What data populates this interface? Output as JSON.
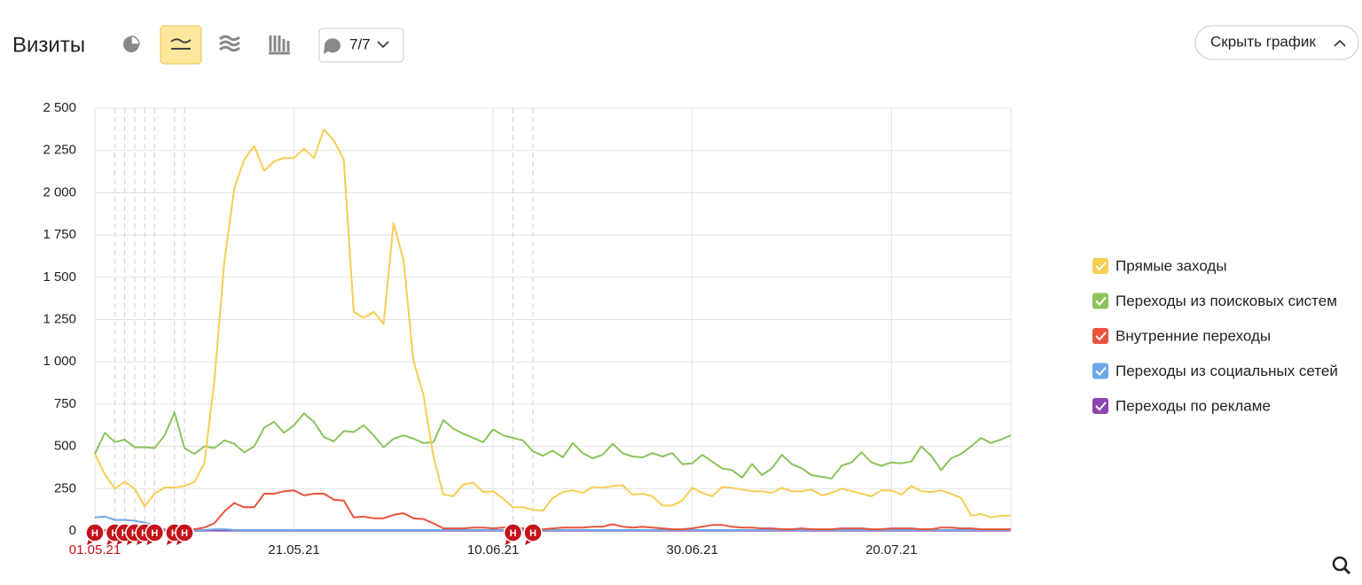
{
  "header": {
    "title": "Визиты",
    "filter": "7/7",
    "hide_button": "Скрыть график"
  },
  "chart_data": {
    "type": "line",
    "x": [
      "01.05.21",
      "02.05.21",
      "03.05.21",
      "04.05.21",
      "05.05.21",
      "06.05.21",
      "07.05.21",
      "08.05.21",
      "09.05.21",
      "10.05.21",
      "11.05.21",
      "12.05.21",
      "13.05.21",
      "14.05.21",
      "15.05.21",
      "16.05.21",
      "17.05.21",
      "18.05.21",
      "19.05.21",
      "20.05.21",
      "21.05.21",
      "22.05.21",
      "23.05.21",
      "24.05.21",
      "25.05.21",
      "26.05.21",
      "27.05.21",
      "28.05.21",
      "29.05.21",
      "30.05.21",
      "31.05.21",
      "01.06.21",
      "02.06.21",
      "03.06.21",
      "04.06.21",
      "05.06.21",
      "06.06.21",
      "07.06.21",
      "08.06.21",
      "09.06.21",
      "10.06.21",
      "11.06.21",
      "12.06.21",
      "13.06.21",
      "14.06.21",
      "15.06.21",
      "16.06.21",
      "17.06.21",
      "18.06.21",
      "19.06.21",
      "20.06.21",
      "21.06.21",
      "22.06.21",
      "23.06.21",
      "24.06.21",
      "25.06.21",
      "26.06.21",
      "27.06.21",
      "28.06.21",
      "29.06.21",
      "30.06.21",
      "01.07.21",
      "02.07.21",
      "03.07.21",
      "04.07.21",
      "05.07.21",
      "06.07.21",
      "07.07.21",
      "08.07.21",
      "09.07.21",
      "10.07.21",
      "11.07.21",
      "12.07.21",
      "13.07.21",
      "14.07.21",
      "15.07.21",
      "16.07.21",
      "17.07.21",
      "18.07.21",
      "19.07.21",
      "20.07.21",
      "21.07.21",
      "22.07.21",
      "23.07.21",
      "24.07.21",
      "25.07.21",
      "26.07.21",
      "27.07.21",
      "28.07.21",
      "29.07.21",
      "30.07.21",
      "31.07.21",
      "01.08.21"
    ],
    "xticks": [
      "01.05.21",
      "21.05.21",
      "10.06.21",
      "30.06.21",
      "20.07.21"
    ],
    "ylim": [
      0,
      2500
    ],
    "yticks": [
      0,
      250,
      500,
      750,
      {
        "value": 1000,
        "label": "1 000"
      },
      {
        "value": 1250,
        "label": "1 250"
      },
      {
        "value": 1500,
        "label": "1 500"
      },
      {
        "value": 1750,
        "label": "1 750"
      },
      {
        "value": 2000,
        "label": "2 000"
      },
      {
        "value": 2250,
        "label": "2 250"
      },
      {
        "value": 2500,
        "label": "2 500"
      }
    ],
    "grid": true,
    "holidays": [
      {
        "x": "01.05.21",
        "label": "Н"
      },
      {
        "x": "03.05.21",
        "label": "Н"
      },
      {
        "x": "04.05.21",
        "label": "Н"
      },
      {
        "x": "05.05.21",
        "label": "Н"
      },
      {
        "x": "06.05.21",
        "label": "Н"
      },
      {
        "x": "07.05.21",
        "label": "Н"
      },
      {
        "x": "09.05.21",
        "label": "Н"
      },
      {
        "x": "10.05.21",
        "label": "Н"
      },
      {
        "x": "12.06.21",
        "label": "Н"
      },
      {
        "x": "14.06.21",
        "label": "Н"
      }
    ],
    "series": [
      {
        "name": "Прямые заходы",
        "color": "#f7cd54",
        "values": [
          456,
          335,
          250,
          290,
          250,
          145,
          220,
          257,
          257,
          265,
          290,
          400,
          885,
          1590,
          2025,
          2195,
          2275,
          2130,
          2185,
          2205,
          2205,
          2260,
          2205,
          2375,
          2310,
          2195,
          1295,
          1260,
          1295,
          1225,
          1820,
          1600,
          1005,
          805,
          440,
          215,
          205,
          275,
          285,
          230,
          235,
          190,
          140,
          140,
          125,
          120,
          195,
          230,
          240,
          225,
          260,
          255,
          265,
          270,
          215,
          220,
          205,
          150,
          150,
          180,
          255,
          225,
          205,
          260,
          255,
          245,
          235,
          235,
          225,
          255,
          235,
          235,
          245,
          210,
          225,
          250,
          235,
          220,
          205,
          240,
          240,
          215,
          265,
          235,
          230,
          240,
          220,
          195,
          90,
          100,
          80,
          90,
          90
        ]
      },
      {
        "name": "Переходы из поисковых систем",
        "color": "#8bc45c",
        "values": [
          455,
          580,
          525,
          540,
          495,
          495,
          490,
          565,
          700,
          490,
          455,
          500,
          490,
          535,
          515,
          465,
          500,
          610,
          645,
          580,
          625,
          695,
          645,
          555,
          530,
          590,
          585,
          625,
          565,
          495,
          545,
          565,
          545,
          520,
          525,
          655,
          605,
          575,
          550,
          525,
          600,
          565,
          550,
          535,
          470,
          445,
          475,
          435,
          520,
          460,
          430,
          450,
          515,
          460,
          440,
          435,
          460,
          440,
          460,
          395,
          400,
          450,
          410,
          370,
          360,
          315,
          395,
          330,
          370,
          450,
          395,
          370,
          330,
          320,
          310,
          385,
          405,
          465,
          405,
          385,
          405,
          400,
          410,
          500,
          445,
          360,
          430,
          455,
          500,
          550,
          520,
          540,
          565
        ]
      },
      {
        "name": "Внутренние переходы",
        "color": "#e8533d",
        "values": [
          5,
          5,
          5,
          5,
          5,
          5,
          5,
          5,
          5,
          10,
          10,
          20,
          45,
          115,
          165,
          140,
          140,
          220,
          220,
          235,
          240,
          210,
          220,
          220,
          185,
          180,
          80,
          85,
          75,
          75,
          95,
          105,
          75,
          70,
          45,
          15,
          15,
          15,
          20,
          20,
          15,
          20,
          25,
          15,
          10,
          10,
          15,
          20,
          20,
          20,
          25,
          25,
          40,
          25,
          20,
          25,
          20,
          15,
          10,
          10,
          15,
          25,
          35,
          35,
          25,
          20,
          20,
          15,
          15,
          10,
          10,
          15,
          10,
          10,
          10,
          15,
          15,
          15,
          10,
          10,
          15,
          15,
          15,
          10,
          10,
          20,
          20,
          15,
          15,
          10,
          10,
          10,
          10
        ]
      },
      {
        "name": "Переходы из социальных сетей",
        "color": "#6ea7e6",
        "values": [
          80,
          85,
          65,
          65,
          60,
          50,
          30,
          10,
          5,
          5,
          5,
          5,
          10,
          10,
          5,
          5,
          5,
          5,
          5,
          5,
          5,
          5,
          5,
          5,
          5,
          5,
          5,
          5,
          5,
          5,
          5,
          5,
          5,
          5,
          5,
          5,
          5,
          5,
          5,
          5,
          5,
          5,
          5,
          5,
          5,
          5,
          5,
          5,
          5,
          5,
          5,
          5,
          5,
          5,
          5,
          5,
          5,
          5,
          5,
          5,
          5,
          5,
          5,
          5,
          5,
          5,
          5,
          5,
          5,
          5,
          5,
          5,
          5,
          5,
          5,
          5,
          5,
          5,
          5,
          5,
          5,
          5,
          5,
          5,
          5,
          5,
          5,
          5,
          5,
          5,
          5,
          5,
          5
        ]
      },
      {
        "name": "Переходы по рекламе",
        "color": "#8e44ad",
        "values": [
          2,
          2,
          2,
          2,
          2,
          2,
          2,
          2,
          2,
          2,
          2,
          2,
          2,
          2,
          2,
          2,
          2,
          2,
          2,
          2,
          2,
          2,
          2,
          2,
          2,
          2,
          2,
          2,
          2,
          2,
          2,
          2,
          2,
          2,
          2,
          2,
          2,
          2,
          2,
          2,
          2,
          2,
          2,
          2,
          2,
          2,
          2,
          2,
          2,
          2,
          2,
          2,
          2,
          2,
          2,
          2,
          2,
          2,
          2,
          2,
          2,
          2,
          2,
          2,
          2,
          2,
          2,
          2,
          2,
          2,
          2,
          2,
          2,
          2,
          2,
          2,
          2,
          2,
          2,
          2,
          2,
          2,
          2,
          2,
          2,
          2,
          2,
          2,
          2,
          2,
          2,
          2,
          2
        ]
      }
    ]
  }
}
